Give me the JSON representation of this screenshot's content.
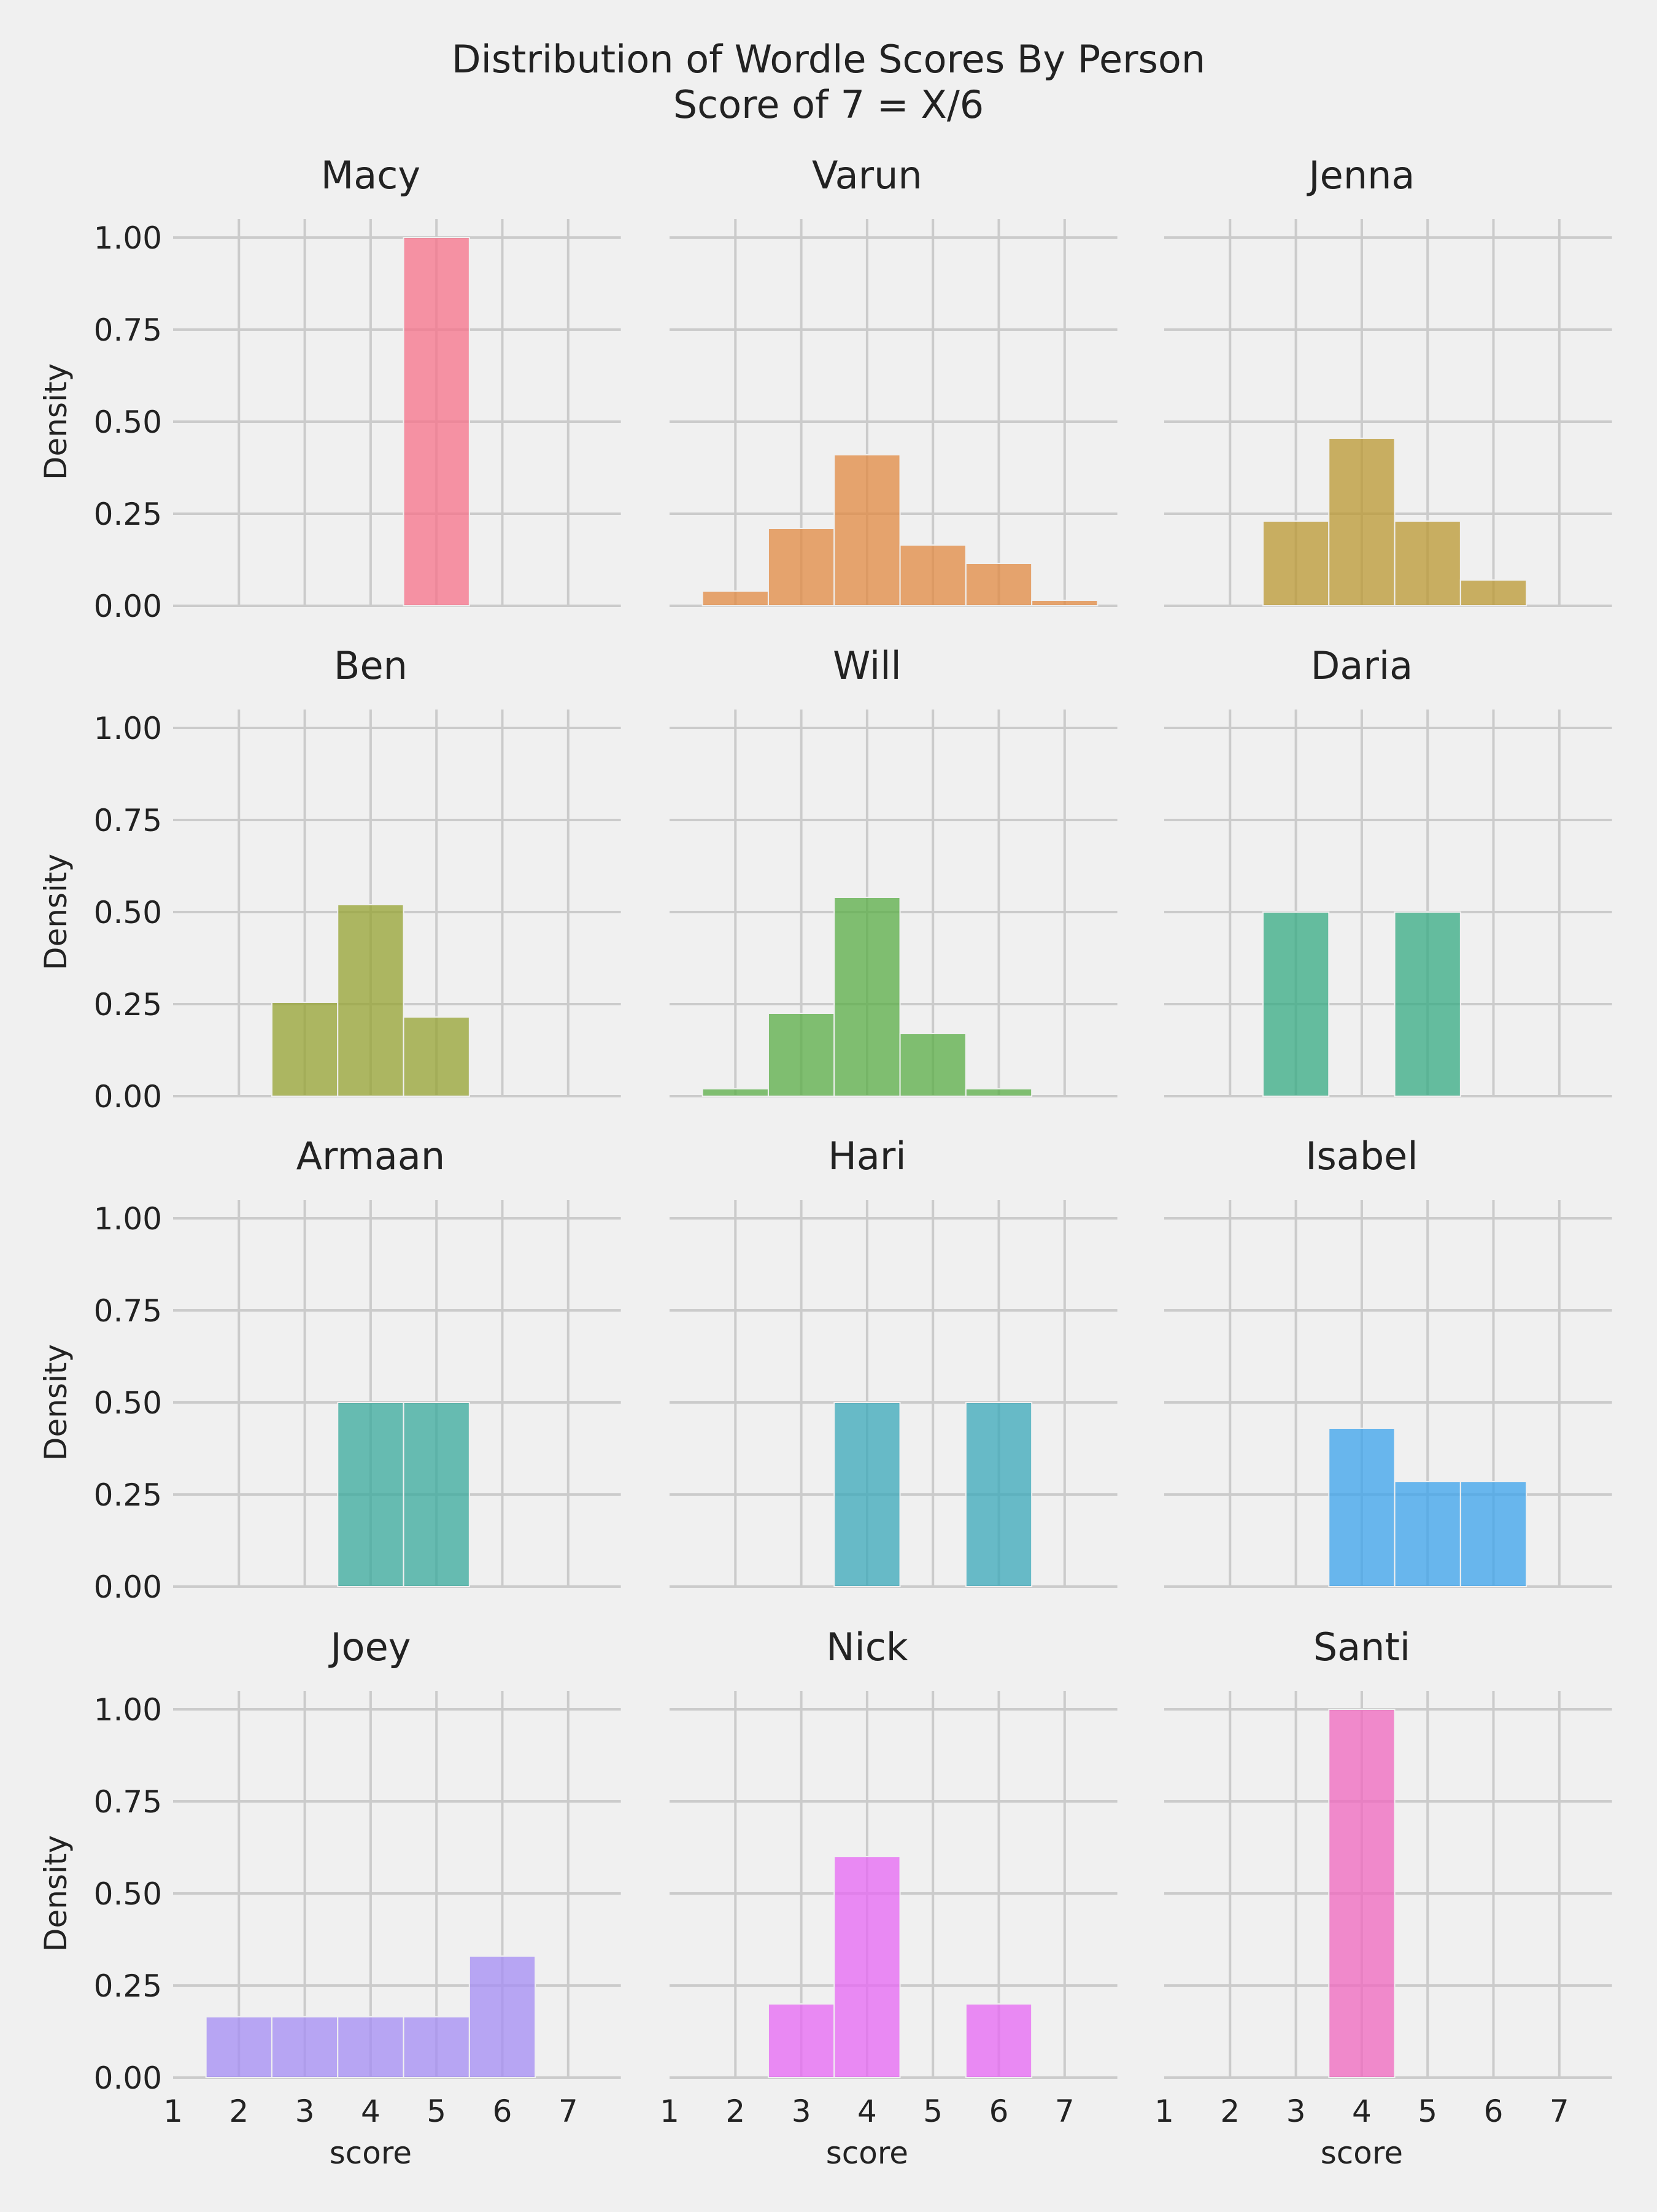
{
  "title_line1": "Distribution of Wordle Scores By Person",
  "title_line2": "Score of 7 = X/6",
  "chart_data": {
    "type": "bar",
    "subtype": "histogram-facets",
    "grid": true,
    "xlabel": "score",
    "ylabel": "Density",
    "xlim": [
      1,
      7.8
    ],
    "ylim": [
      0,
      1.05
    ],
    "xticks": [
      "1",
      "2",
      "3",
      "4",
      "5",
      "6",
      "7"
    ],
    "yticks": [
      "0.00",
      "0.25",
      "0.50",
      "0.75",
      "1.00"
    ],
    "panels": [
      {
        "name": "Macy",
        "color": "#f77189",
        "bins": [
          {
            "x": 5,
            "y": 1.0
          }
        ]
      },
      {
        "name": "Varun",
        "color": "#e18a41",
        "bins": [
          {
            "x": 2,
            "y": 0.04
          },
          {
            "x": 3,
            "y": 0.21
          },
          {
            "x": 4,
            "y": 0.41
          },
          {
            "x": 5,
            "y": 0.165
          },
          {
            "x": 6,
            "y": 0.115
          },
          {
            "x": 7,
            "y": 0.015
          }
        ]
      },
      {
        "name": "Jenna",
        "color": "#bb9832",
        "bins": [
          {
            "x": 3,
            "y": 0.23
          },
          {
            "x": 4,
            "y": 0.455
          },
          {
            "x": 5,
            "y": 0.23
          },
          {
            "x": 6,
            "y": 0.07
          }
        ]
      },
      {
        "name": "Ben",
        "color": "#96a331",
        "bins": [
          {
            "x": 3,
            "y": 0.255
          },
          {
            "x": 4,
            "y": 0.52
          },
          {
            "x": 5,
            "y": 0.215
          }
        ]
      },
      {
        "name": "Will",
        "color": "#5aae45",
        "bins": [
          {
            "x": 2,
            "y": 0.02
          },
          {
            "x": 3,
            "y": 0.225
          },
          {
            "x": 4,
            "y": 0.54
          },
          {
            "x": 5,
            "y": 0.17
          },
          {
            "x": 6,
            "y": 0.02
          }
        ]
      },
      {
        "name": "Daria",
        "color": "#35ab83",
        "bins": [
          {
            "x": 3,
            "y": 0.5
          },
          {
            "x": 5,
            "y": 0.5
          }
        ]
      },
      {
        "name": "Armaan",
        "color": "#38a99c",
        "bins": [
          {
            "x": 4,
            "y": 0.5
          },
          {
            "x": 5,
            "y": 0.5
          }
        ]
      },
      {
        "name": "Hari",
        "color": "#39a8b9",
        "bins": [
          {
            "x": 4,
            "y": 0.5
          },
          {
            "x": 6,
            "y": 0.5
          }
        ]
      },
      {
        "name": "Isabel",
        "color": "#3ba3ec",
        "bins": [
          {
            "x": 4,
            "y": 0.43
          },
          {
            "x": 5,
            "y": 0.285
          },
          {
            "x": 6,
            "y": 0.285
          }
        ]
      },
      {
        "name": "Joey",
        "color": "#a48cf4",
        "bins": [
          {
            "x": 2,
            "y": 0.165
          },
          {
            "x": 3,
            "y": 0.165
          },
          {
            "x": 4,
            "y": 0.165
          },
          {
            "x": 5,
            "y": 0.165
          },
          {
            "x": 6,
            "y": 0.33
          }
        ]
      },
      {
        "name": "Nick",
        "color": "#e767f4",
        "bins": [
          {
            "x": 3,
            "y": 0.2
          },
          {
            "x": 4,
            "y": 0.6
          },
          {
            "x": 6,
            "y": 0.2
          }
        ]
      },
      {
        "name": "Santi",
        "color": "#f067bf",
        "bins": [
          {
            "x": 4,
            "y": 1.0
          }
        ]
      }
    ]
  }
}
